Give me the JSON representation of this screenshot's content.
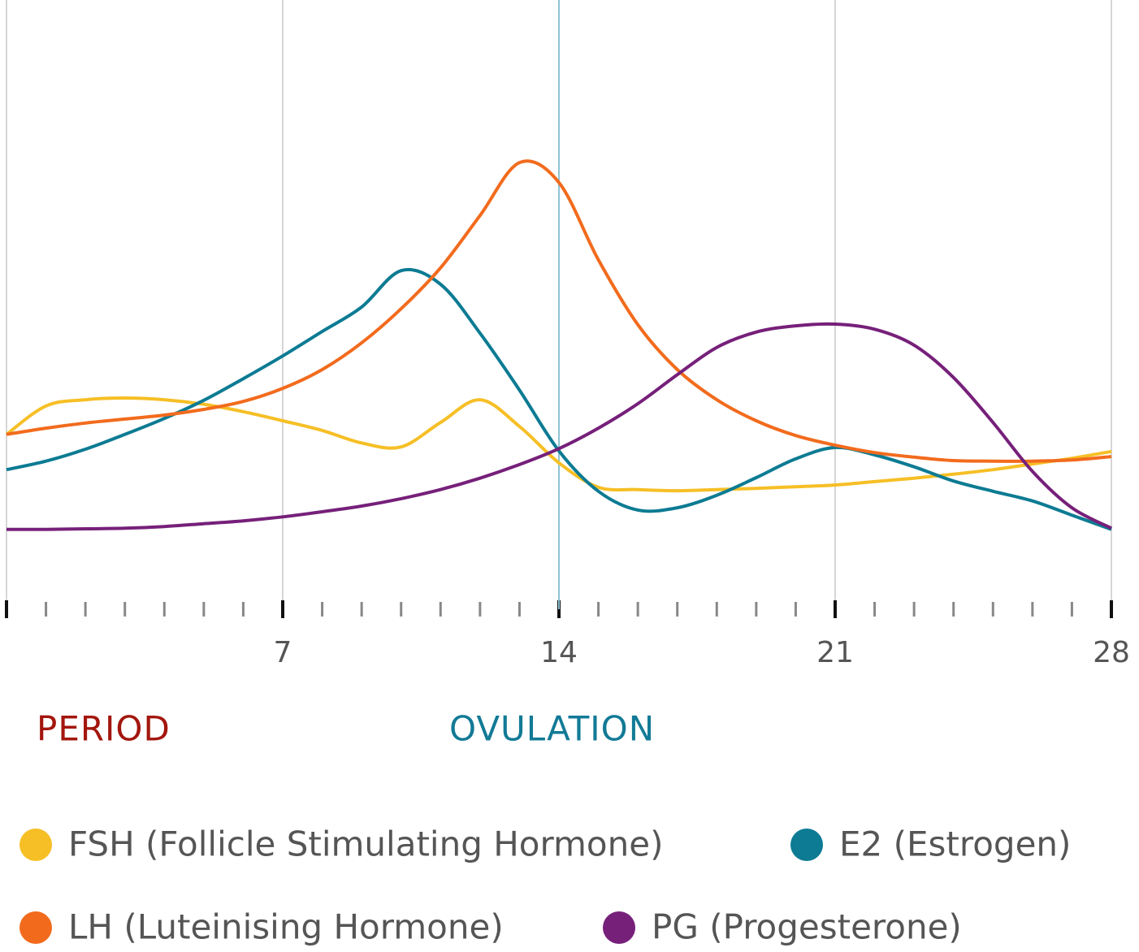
{
  "chart_data": {
    "type": "line",
    "x": [
      0,
      1,
      2,
      3,
      4,
      5,
      6,
      7,
      8,
      9,
      10,
      11,
      12,
      13,
      14,
      15,
      16,
      17,
      18,
      19,
      20,
      21,
      22,
      23,
      24,
      25,
      26,
      27,
      28
    ],
    "series": [
      {
        "name": "FSH (Follicle Stimulating Hormone)",
        "color": "#f6bf26",
        "values": [
          23.6,
          28.6,
          29.7,
          30,
          29.7,
          28.9,
          27.6,
          26,
          24.3,
          22.1,
          21.4,
          25.7,
          29.7,
          25,
          18.6,
          14.3,
          13.9,
          13.7,
          13.9,
          14.1,
          14.4,
          14.7,
          15.3,
          15.9,
          16.6,
          17.4,
          18.4,
          19.4,
          20.6
        ]
      },
      {
        "name": "E2 (Estrogen)",
        "color": "#0c7b93",
        "values": [
          17.4,
          18.9,
          21,
          23.6,
          26.4,
          29.6,
          33.4,
          37.4,
          41.7,
          46,
          52.4,
          50,
          41.4,
          31.4,
          20.7,
          13.6,
          10.3,
          10.7,
          12.9,
          16,
          19.3,
          21.3,
          20,
          17.9,
          15.4,
          13.6,
          11.9,
          9.4,
          6.9
        ]
      },
      {
        "name": "LH (Luteinising Hormone)",
        "color": "#f26b1d",
        "values": [
          23.6,
          24.7,
          25.6,
          26.3,
          27,
          28,
          29.4,
          31.7,
          35,
          39.7,
          45.7,
          52.9,
          62.1,
          71.4,
          67.9,
          54.3,
          42.9,
          35,
          29.7,
          26,
          23.4,
          21.7,
          20.4,
          19.6,
          19,
          18.9,
          18.9,
          19.1,
          19.7
        ]
      },
      {
        "name": "PG (Progesterone)",
        "color": "#76207a",
        "values": [
          6.9,
          6.9,
          7,
          7.1,
          7.4,
          7.9,
          8.4,
          9.1,
          10,
          11,
          12.3,
          13.9,
          15.9,
          18.3,
          21.1,
          24.7,
          29,
          34.1,
          38.9,
          41.6,
          42.7,
          43,
          42.1,
          39.3,
          33.6,
          25.7,
          17.1,
          10.7,
          7.1
        ]
      }
    ],
    "xlim": [
      0,
      28
    ],
    "xticks": [
      7,
      14,
      21,
      28
    ],
    "xticks_minor": [
      1,
      2,
      3,
      4,
      5,
      6,
      8,
      9,
      10,
      11,
      12,
      13,
      15,
      16,
      17,
      18,
      19,
      20,
      22,
      23,
      24,
      25,
      26,
      27
    ],
    "ylim": [
      0,
      100
    ],
    "grid": true,
    "vline": {
      "x": 14,
      "color": "#8cc3d3"
    },
    "annotations": [
      {
        "text": "PERIOD",
        "color": "#a3160d"
      },
      {
        "text": "OVULATION",
        "color": "#127a96"
      }
    ]
  }
}
